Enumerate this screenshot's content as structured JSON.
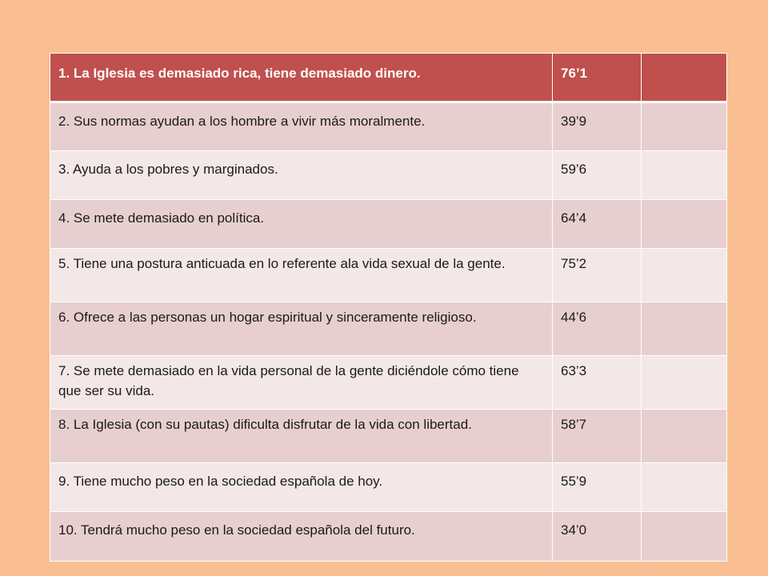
{
  "table": {
    "header": {
      "statement": "1. La Iglesia es demasiado rica, tiene demasiado dinero.",
      "value": "76’1",
      "extra": ""
    },
    "rows": [
      {
        "statement": "2. Sus normas ayudan a los hombre a vivir más moralmente.",
        "value": "39’9",
        "extra": ""
      },
      {
        "statement": "3. Ayuda a los pobres y marginados.",
        "value": "59’6",
        "extra": ""
      },
      {
        "statement": "4. Se mete demasiado en política.",
        "value": "64’4",
        "extra": ""
      },
      {
        "statement": "5. Tiene una postura anticuada en lo referente ala vida sexual de la gente.",
        "value": "75’2",
        "extra": ""
      },
      {
        "statement": "6. Ofrece a las personas un hogar espiritual y sinceramente religioso.",
        "value": "44’6",
        "extra": ""
      },
      {
        "statement": "7. Se mete demasiado en la vida personal de la gente diciéndole cómo tiene que ser su vida.",
        "value": "63’3",
        "extra": ""
      },
      {
        "statement": "8. La Iglesia (con su pautas) dificulta disfrutar de la vida con libertad.",
        "value": "58’7",
        "extra": ""
      },
      {
        "statement": "9. Tiene mucho peso en la sociedad española de hoy.",
        "value": "55’9",
        "extra": ""
      },
      {
        "statement": "10. Tendrá mucho peso en la sociedad española del futuro.",
        "value": "34’0",
        "extra": ""
      }
    ]
  }
}
